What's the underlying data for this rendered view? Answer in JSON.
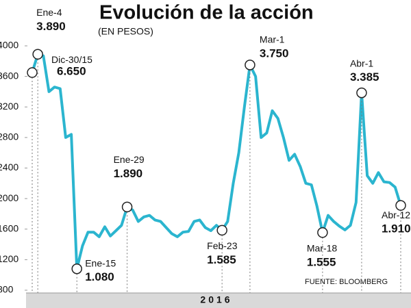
{
  "chart_data": {
    "type": "line",
    "title": "Evolución de la acción",
    "subtitle": "(EN PESOS)",
    "source": "FUENTE: BLOOMBERG",
    "x_label": "2016",
    "categories": [
      "Dic-30/15",
      "Ene-4",
      null,
      null,
      null,
      null,
      null,
      null,
      "Ene-15",
      null,
      null,
      null,
      null,
      null,
      null,
      null,
      null,
      "Ene-29",
      null,
      null,
      null,
      null,
      null,
      null,
      null,
      null,
      null,
      null,
      null,
      null,
      null,
      null,
      null,
      null,
      "Feb-23",
      null,
      null,
      null,
      null,
      "Mar-1",
      null,
      null,
      null,
      null,
      null,
      null,
      null,
      null,
      null,
      null,
      null,
      null,
      "Mar-18",
      null,
      null,
      null,
      null,
      null,
      null,
      "Abr-1",
      null,
      null,
      null,
      null,
      null,
      null,
      "Abr-12"
    ],
    "series": [
      {
        "name": "Acción",
        "color": "#2bb5cf",
        "values": [
          3650,
          3890,
          3870,
          3400,
          3460,
          3440,
          2800,
          2840,
          1080,
          1380,
          1560,
          1560,
          1500,
          1630,
          1510,
          1580,
          1650,
          1890,
          1850,
          1700,
          1760,
          1780,
          1720,
          1700,
          1620,
          1540,
          1500,
          1560,
          1570,
          1700,
          1720,
          1620,
          1580,
          1650,
          1585,
          1700,
          2200,
          2600,
          3200,
          3750,
          3600,
          2800,
          2860,
          3150,
          3050,
          2800,
          2500,
          2580,
          2420,
          2200,
          2180,
          1900,
          1555,
          1780,
          1700,
          1640,
          1590,
          1650,
          1950,
          3385,
          2300,
          2200,
          2340,
          2220,
          2210,
          2150,
          1910
        ],
        "value_labels": [
          null,
          "3.890",
          null,
          null,
          null,
          null,
          null,
          null,
          "1.080",
          null,
          null,
          null,
          null,
          null,
          null,
          null,
          null,
          "1.890",
          null,
          null,
          null,
          null,
          null,
          null,
          null,
          null,
          null,
          null,
          null,
          null,
          null,
          null,
          null,
          null,
          "1.585",
          null,
          null,
          null,
          null,
          "3.750",
          null,
          null,
          null,
          null,
          null,
          null,
          null,
          null,
          null,
          null,
          null,
          null,
          "1.555",
          null,
          null,
          null,
          null,
          null,
          null,
          "3.385",
          null,
          null,
          null,
          null,
          null,
          null,
          "1.910"
        ]
      }
    ],
    "annotations": [
      "6.650"
    ],
    "ylim": [
      800,
      4000
    ],
    "yticks": [
      800,
      1200,
      1600,
      2000,
      2400,
      2800,
      3200,
      3600,
      4000
    ]
  }
}
